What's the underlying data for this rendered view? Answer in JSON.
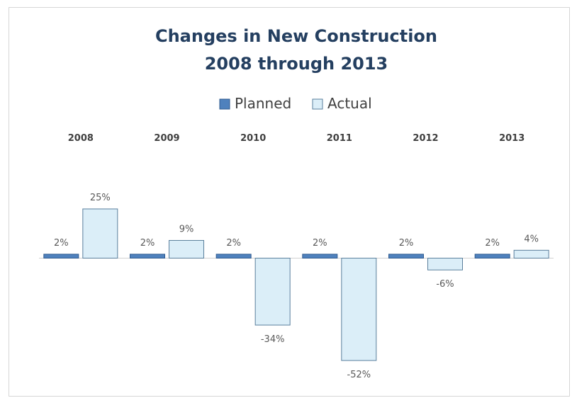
{
  "chart_data": {
    "type": "bar",
    "title": [
      "Changes in New Construction",
      "2008 through 2013"
    ],
    "categories": [
      "2008",
      "2009",
      "2010",
      "2011",
      "2012",
      "2013"
    ],
    "series": [
      {
        "name": "Planned",
        "values": [
          2,
          2,
          2,
          2,
          2,
          2
        ],
        "labels": [
          "2%",
          "2%",
          "2%",
          "2%",
          "2%",
          "2%"
        ],
        "color": "#4f81bd",
        "stroke": "#2f5a8f"
      },
      {
        "name": "Actual",
        "values": [
          25,
          9,
          -34,
          -52,
          -6,
          4
        ],
        "labels": [
          "25%",
          "9%",
          "-34%",
          "-52%",
          "-6%",
          "4%"
        ],
        "color": "#dbeef8",
        "stroke": "#5a7f9c"
      }
    ],
    "ylim": [
      -55,
      30
    ],
    "category_labels_position": "top",
    "legend_position": "top",
    "grid": false
  }
}
